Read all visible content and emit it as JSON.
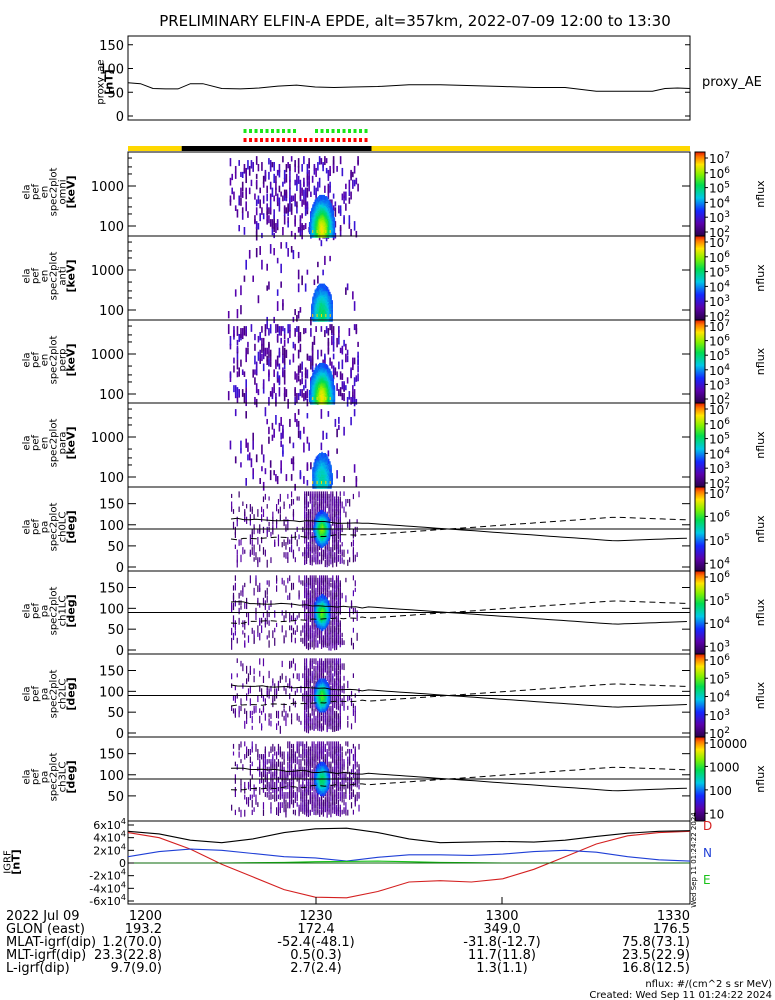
{
  "title": "PRELIMINARY ELFIN-A EPDE, alt=357km, 2022-07-09 12:00 to 13:30",
  "colors": {
    "day_bar": "#ffd800",
    "night_bar": "#000000",
    "green_marks": "#19e619",
    "red_marks": "#ff0000",
    "bx": "#1f3fd6",
    "by": "#19c219",
    "bz": "#d42020",
    "bmag": "#000000"
  },
  "chart_data": [
    {
      "type": "line",
      "panel": "proxy_ae",
      "ylabel": [
        "proxy_ae",
        "[nT]"
      ],
      "legend": "proxy_AE",
      "yticks": [
        "150",
        "100",
        "50",
        "0"
      ],
      "ylim": [
        0,
        160
      ],
      "x_minutes": [
        0,
        2,
        4,
        6,
        8,
        10,
        12,
        15,
        18,
        21,
        24,
        27,
        30,
        33,
        36,
        40,
        45,
        50,
        55,
        60,
        65,
        70,
        75,
        80,
        84,
        86,
        88,
        90
      ],
      "values": [
        70,
        68,
        58,
        57,
        57,
        68,
        68,
        58,
        57,
        59,
        63,
        65,
        61,
        60,
        61,
        62,
        66,
        66,
        64,
        62,
        60,
        60,
        52,
        52,
        52,
        58,
        59,
        58
      ]
    },
    {
      "type": "heatmap",
      "panel": "ela_pef_en_spec2plot_omni",
      "ylabel": [
        "ela",
        "pef",
        "en",
        "spec2plot",
        "omni",
        "[keV]"
      ],
      "yticks": [
        "1000",
        "100"
      ],
      "ylog": true,
      "ylim_keV": [
        50,
        6000
      ],
      "zlabel": "nflux",
      "zticks": [
        "10^7",
        "10^6",
        "10^5",
        "10^4",
        "10^3",
        "10^2"
      ],
      "data_interval_min": [
        16,
        37
      ],
      "peak_interval_min": [
        29,
        33
      ]
    },
    {
      "type": "heatmap",
      "panel": "ela_pef_en_spec2plot_anti",
      "ylabel": [
        "ela",
        "pef",
        "en",
        "spec2plot",
        "anti",
        "[keV]"
      ],
      "yticks": [
        "1000",
        "100"
      ],
      "ylog": true,
      "zlabel": "nflux",
      "zticks": [
        "10^7",
        "10^6",
        "10^5",
        "10^4",
        "10^3",
        "10^2"
      ]
    },
    {
      "type": "heatmap",
      "panel": "ela_pef_en_spec2plot_perp",
      "ylabel": [
        "ela",
        "pef",
        "en",
        "spec2plot",
        "perp",
        "[keV]"
      ],
      "yticks": [
        "1000",
        "100"
      ],
      "ylog": true,
      "zlabel": "nflux",
      "zticks": [
        "10^7",
        "10^6",
        "10^5",
        "10^4",
        "10^3",
        "10^2"
      ]
    },
    {
      "type": "heatmap",
      "panel": "ela_pef_en_spec2plot_para",
      "ylabel": [
        "ela",
        "pef",
        "en",
        "spec2plot",
        "para",
        "[keV]"
      ],
      "yticks": [
        "1000",
        "100"
      ],
      "ylog": true,
      "zlabel": "nflux",
      "zticks": [
        "10^7",
        "10^6",
        "10^5",
        "10^4",
        "10^3",
        "10^2"
      ]
    },
    {
      "type": "heatmap",
      "panel": "ela_pef_pa_spec2plot_ch0LC",
      "ylabel": [
        "ela",
        "pef",
        "pa",
        "spec2plot",
        "ch0LC",
        "[deg]"
      ],
      "yticks": [
        "150",
        "100",
        "50",
        "0"
      ],
      "ylim_deg": [
        0,
        180
      ],
      "zlabel": "nflux",
      "zticks": [
        "10^7",
        "10^6",
        "10^5",
        "10^4"
      ]
    },
    {
      "type": "heatmap",
      "panel": "ela_pef_pa_spec2plot_ch1LC",
      "ylabel": [
        "ela",
        "pef",
        "pa",
        "spec2plot",
        "ch1LC",
        "[deg]"
      ],
      "yticks": [
        "150",
        "100",
        "50",
        "0"
      ],
      "ylim_deg": [
        0,
        180
      ],
      "zlabel": "nflux",
      "zticks": [
        "10^6",
        "10^5",
        "10^4",
        "10^3"
      ]
    },
    {
      "type": "heatmap",
      "panel": "ela_pef_pa_spec2plot_ch2LC",
      "ylabel": [
        "ela",
        "pef",
        "pa",
        "spec2plot",
        "ch2LC",
        "[deg]"
      ],
      "yticks": [
        "150",
        "100",
        "50",
        "0"
      ],
      "ylim_deg": [
        0,
        180
      ],
      "zlabel": "nflux",
      "zticks": [
        "10^6",
        "10^5",
        "10^4",
        "10^3",
        "10^2"
      ]
    },
    {
      "type": "heatmap",
      "panel": "ela_pef_pa_spec2plot_ch3LC",
      "ylabel": [
        "ela",
        "pef",
        "pa",
        "spec2plot",
        "ch3LC",
        "[deg]"
      ],
      "yticks": [
        "150",
        "100",
        "50"
      ],
      "ylim_deg": [
        0,
        180
      ],
      "zlabel": "nflux",
      "zticks": [
        "10000",
        "1000",
        "100",
        "10"
      ]
    },
    {
      "type": "line",
      "panel": "IGRF",
      "ylabel": [
        "IGRF",
        "[nT]"
      ],
      "yticks": [
        "6x10^4",
        "4x10^4",
        "2x10^4",
        "0",
        "-2x10^4",
        "-4x10^4",
        "-6x10^4"
      ],
      "ylim": [
        -60000,
        60000
      ],
      "legend": [
        "D",
        "N",
        "E"
      ],
      "x_minutes": [
        0,
        5,
        10,
        15,
        20,
        25,
        30,
        35,
        40,
        45,
        50,
        55,
        60,
        65,
        70,
        75,
        80,
        85,
        90
      ],
      "series": [
        {
          "name": "D",
          "values": [
            48000,
            40000,
            22000,
            -2000,
            -22000,
            -42000,
            -54000,
            -55000,
            -45000,
            -30000,
            -28000,
            -30000,
            -25000,
            -10000,
            10000,
            30000,
            43000,
            48000,
            50000
          ]
        },
        {
          "name": "N",
          "values": [
            10000,
            18000,
            22000,
            20000,
            15000,
            10000,
            8000,
            3000,
            9000,
            13000,
            13000,
            12000,
            14000,
            18000,
            20000,
            17000,
            10000,
            5000,
            3000
          ]
        },
        {
          "name": "E",
          "values": [
            0,
            0,
            0,
            0,
            500,
            1000,
            2000,
            2500,
            3000,
            2000,
            1000,
            500,
            0,
            0,
            0,
            0,
            0,
            0,
            0
          ]
        },
        {
          "values": [
            50000,
            46000,
            36000,
            32000,
            38000,
            48000,
            54000,
            55000,
            48000,
            38000,
            32000,
            33000,
            34000,
            33000,
            36000,
            42000,
            47000,
            50000,
            51000
          ]
        }
      ]
    }
  ],
  "xaxis": {
    "rows": [
      {
        "label": "2022 Jul 09",
        "values": [
          "1200",
          "1230",
          "1300",
          "1330"
        ]
      },
      {
        "label": "GLON (east)",
        "values": [
          "193.2",
          "172.4",
          "349.0",
          "176.5"
        ]
      },
      {
        "label": "MLAT-igrf(dip)",
        "values": [
          "1.2(70.0)",
          "-52.4(-48.1)",
          "-31.8(-12.7)",
          "75.8(73.1)"
        ]
      },
      {
        "label": "MLT-igrf(dip)",
        "values": [
          "23.3(22.8)",
          "0.5(0.3)",
          "11.7(11.8)",
          "23.5(22.9)"
        ]
      },
      {
        "label": "L-igrf(dip)",
        "values": [
          "9.7(9.0)",
          "2.7(2.4)",
          "1.3(1.1)",
          "16.8(12.5)"
        ]
      }
    ]
  },
  "footer": {
    "units": "nflux: #/(cm^2 s sr MeV)",
    "created": "Created: Wed Sep 11 01:24:22 2024",
    "vertical_stamp": "Wed Sep 11 01:24:22 2024"
  }
}
